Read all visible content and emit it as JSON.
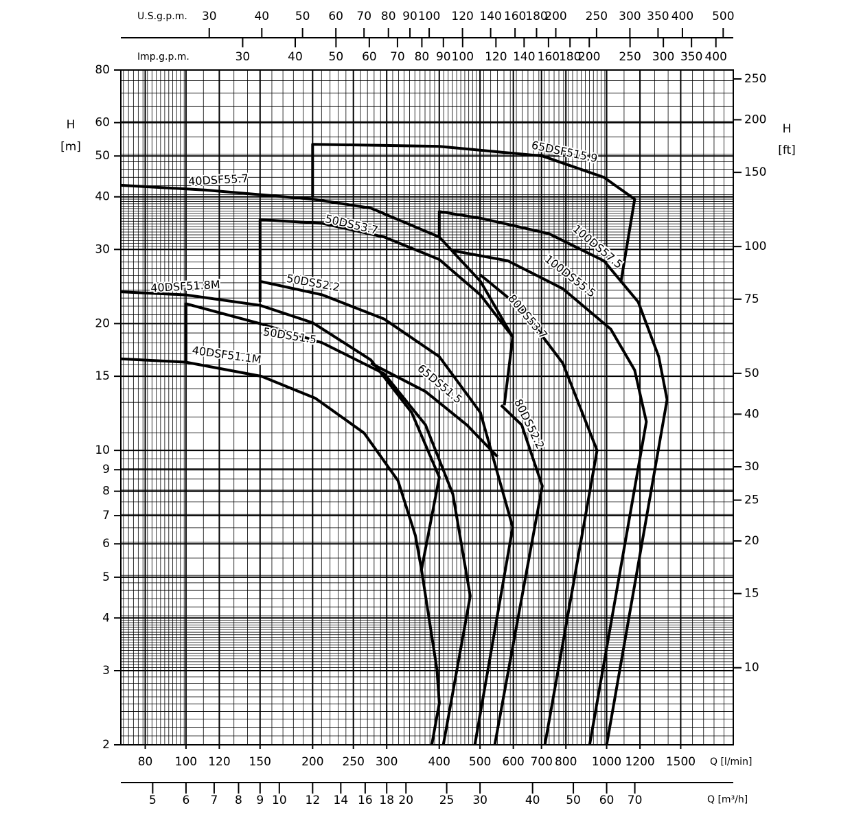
{
  "chart_data": {
    "type": "line",
    "xscale": "log",
    "yscale": "log",
    "grid": true,
    "x_label": "Q [l/min]",
    "y_label": "H",
    "y_unit": "[m]",
    "y2_label": "H",
    "y2_unit": "[ft]",
    "xlim": [
      70,
      2000
    ],
    "xticks": [
      80,
      100,
      120,
      150,
      200,
      250,
      300,
      400,
      500,
      600,
      700,
      800,
      1000,
      1200,
      1500
    ],
    "ylim": [
      2,
      80
    ],
    "yticks": [
      2,
      3,
      4,
      5,
      6,
      7,
      8,
      9,
      10,
      15,
      20,
      30,
      40,
      50,
      60,
      80
    ],
    "y2lim": [
      6.562,
      262.5
    ],
    "y2ticks": [
      10,
      15,
      20,
      25,
      30,
      40,
      50,
      75,
      100,
      150,
      200,
      250
    ],
    "top_axis": {
      "label": "U.S.g.p.m.",
      "lim": [
        18.49,
        528.4
      ],
      "ticks": [
        30,
        40,
        50,
        60,
        70,
        80,
        90,
        100,
        120,
        140,
        160,
        180,
        200,
        250,
        300,
        350,
        400,
        500
      ]
    },
    "top_axis_2": {
      "label": "Imp.g.p.m.",
      "lim": [
        15.4,
        439.9
      ],
      "ticks": [
        30,
        40,
        50,
        60,
        70,
        80,
        90,
        100,
        120,
        140,
        160,
        180,
        200,
        250,
        300,
        350,
        400
      ]
    },
    "bottom_axis_2": {
      "label": "Q [m³/h]",
      "lim": [
        4.2,
        120
      ],
      "ticks": [
        5,
        6,
        7,
        8,
        9,
        10,
        12,
        14,
        16,
        18,
        20,
        25,
        30,
        40,
        50,
        60,
        70
      ]
    },
    "series": [
      {
        "name": "40DSF55.7",
        "color": "#000000",
        "x": [
          70,
          111.5,
          200,
          275,
          400,
          501,
          598,
          571
        ],
        "values": [
          42.6,
          41.5,
          39.5,
          37.6,
          32.1,
          25.2,
          18.6,
          12.8
        ]
      },
      {
        "name": "65DSF515.9",
        "color": "#000000",
        "x": [
          200,
          200,
          400,
          703,
          985,
          1166,
          1082
        ],
        "values": [
          40,
          53.3,
          52.7,
          50,
          44.5,
          39.5,
          25.2
        ]
      },
      {
        "name": "50DS53.7",
        "color": "#000000",
        "x": [
          150,
          150,
          211,
          296,
          400,
          501,
          598
        ],
        "values": [
          22.5,
          35.3,
          34.6,
          32.1,
          28.4,
          23.4,
          18.6
        ]
      },
      {
        "name": "100DS57.5",
        "color": "#000000",
        "x": [
          400,
          400,
          501,
          729,
          985,
          1189,
          1330,
          1392,
          1000
        ],
        "values": [
          32.1,
          36.9,
          35.6,
          32.7,
          28.2,
          22.5,
          16.7,
          13.2,
          2
        ]
      },
      {
        "name": "100DS55.5",
        "color": "#000000",
        "x": [
          431,
          582,
          787,
          1023,
          1166,
          1243,
          911
        ],
        "values": [
          29.8,
          28.2,
          24.2,
          19.4,
          15.5,
          11.7,
          2
        ]
      },
      {
        "name": "80DS53.7",
        "color": "#000000",
        "x": [
          501,
          628,
          787,
          949,
          713
        ],
        "values": [
          26.1,
          21.7,
          16.1,
          10,
          2
        ]
      },
      {
        "name": "50DS52.2",
        "color": "#000000",
        "x": [
          150,
          211,
          296,
          400,
          501,
          598,
          486
        ],
        "values": [
          25.2,
          23.4,
          20.5,
          16.7,
          12.3,
          6.57,
          2
        ]
      },
      {
        "name": "80DS52.2",
        "color": "#000000",
        "x": [
          561,
          628,
          703,
          542
        ],
        "values": [
          12.8,
          11.5,
          8.23,
          2
        ]
      },
      {
        "name": "65DS51.5",
        "color": "#000000",
        "x": [
          275,
          371,
          465,
          550
        ],
        "values": [
          16.1,
          13.8,
          11.5,
          9.67
        ]
      },
      {
        "name": "50DS51.5",
        "color": "#000000",
        "x": [
          100,
          100,
          150,
          211,
          296,
          371,
          431,
          474,
          409
        ],
        "values": [
          16.1,
          22.3,
          20,
          18,
          15.2,
          11.5,
          7.87,
          4.51,
          2
        ]
      },
      {
        "name": "40DSF51.8M",
        "color": "#000000",
        "x": [
          70,
          100,
          150,
          200,
          275,
          344,
          400,
          363
        ],
        "values": [
          23.8,
          23.4,
          22.1,
          20.1,
          16.4,
          12.3,
          8.64,
          5.21
        ]
      },
      {
        "name": "40DSF51.1M",
        "color": "#000000",
        "x": [
          70,
          100,
          151,
          203,
          265,
          319,
          351,
          363,
          395,
          400,
          384
        ],
        "values": [
          16.5,
          16.2,
          15,
          13.3,
          11,
          8.48,
          6.28,
          5.21,
          3.02,
          2.51,
          2
        ]
      }
    ]
  }
}
